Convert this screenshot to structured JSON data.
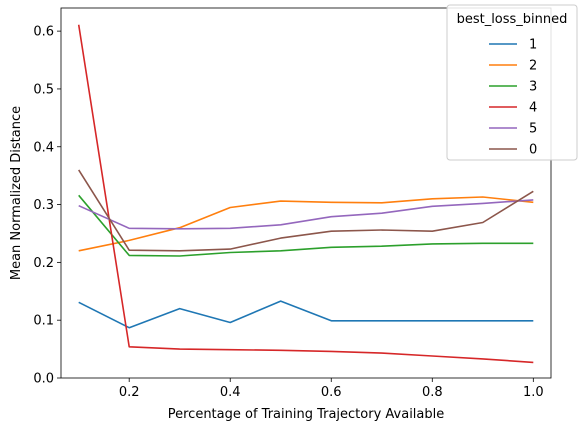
{
  "chart_data": {
    "type": "line",
    "xlabel": "Percentage of Training Trajectory Available",
    "ylabel": "Mean Normalized Distance",
    "xlim": [
      0.065,
      1.035
    ],
    "ylim": [
      0.0,
      0.64
    ],
    "xticks": [
      0.2,
      0.4,
      0.6,
      0.8,
      1.0
    ],
    "xtick_labels": [
      "0.2",
      "0.4",
      "0.6",
      "0.8",
      "1.0"
    ],
    "yticks": [
      0.0,
      0.1,
      0.2,
      0.3,
      0.4,
      0.5,
      0.6
    ],
    "ytick_labels": [
      "0.0",
      "0.1",
      "0.2",
      "0.3",
      "0.4",
      "0.5",
      "0.6"
    ],
    "grid": false,
    "legend": {
      "title": "best_loss_binned",
      "placement": "top-right"
    },
    "x": [
      0.1,
      0.2,
      0.3,
      0.4,
      0.5,
      0.6,
      0.7,
      0.8,
      0.9,
      1.0
    ],
    "series": [
      {
        "name": "1",
        "color": "#1f77b4",
        "values": [
          0.131,
          0.087,
          0.12,
          0.096,
          0.133,
          0.099,
          0.099,
          0.099,
          0.099,
          0.099
        ]
      },
      {
        "name": "2",
        "color": "#ff7f0e",
        "values": [
          0.22,
          0.238,
          0.26,
          0.295,
          0.306,
          0.304,
          0.303,
          0.31,
          0.313,
          0.304
        ]
      },
      {
        "name": "3",
        "color": "#2ca02c",
        "values": [
          0.316,
          0.212,
          0.211,
          0.217,
          0.22,
          0.226,
          0.228,
          0.232,
          0.233,
          0.233
        ]
      },
      {
        "name": "4",
        "color": "#d62728",
        "values": [
          0.611,
          0.054,
          0.05,
          0.049,
          0.048,
          0.046,
          0.043,
          0.038,
          0.033,
          0.027
        ]
      },
      {
        "name": "5",
        "color": "#9467bd",
        "values": [
          0.298,
          0.259,
          0.258,
          0.259,
          0.265,
          0.279,
          0.285,
          0.297,
          0.302,
          0.308
        ]
      },
      {
        "name": "0",
        "color": "#8c564b",
        "values": [
          0.36,
          0.221,
          0.22,
          0.223,
          0.242,
          0.254,
          0.256,
          0.254,
          0.269,
          0.323
        ]
      }
    ]
  }
}
